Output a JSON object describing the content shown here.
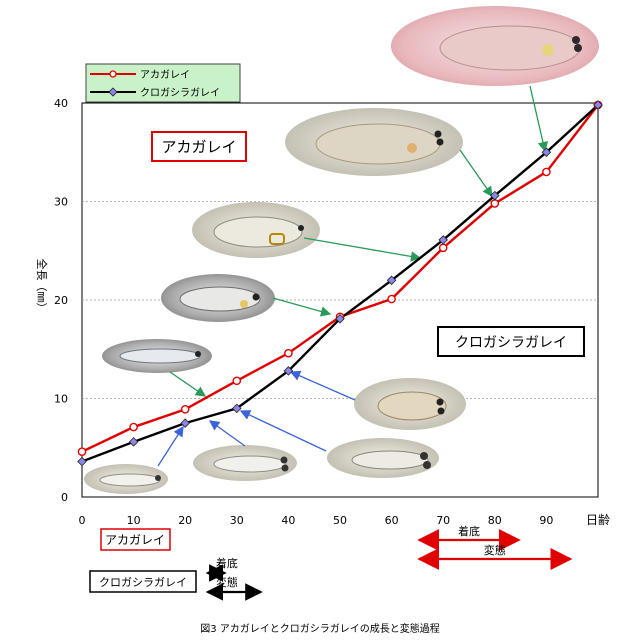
{
  "chart_data": {
    "type": "line",
    "title": "",
    "caption": "図3 アカガレイとクロガシラガレイの成長と変態過程",
    "xlabel": "日齢",
    "ylabel": "全長（㎜）",
    "xlim": [
      0,
      100
    ],
    "ylim": [
      0,
      40
    ],
    "xticks": [
      0,
      10,
      20,
      30,
      40,
      50,
      60,
      70,
      80,
      90
    ],
    "yticks": [
      0,
      10,
      20,
      30,
      40
    ],
    "grid": "horizontal dotted",
    "legend_position": "top-left",
    "series": [
      {
        "name": "アカガレイ",
        "color": "#e00000",
        "marker": "circle",
        "x": [
          0,
          10,
          20,
          30,
          40,
          50,
          60,
          70,
          80,
          90,
          100
        ],
        "y": [
          4.6,
          7.1,
          8.9,
          11.8,
          14.6,
          18.3,
          20.1,
          25.3,
          29.8,
          33.0,
          39.8
        ]
      },
      {
        "name": "クロガシラガレイ",
        "color": "#000000",
        "marker": "diamond",
        "x": [
          0,
          10,
          20,
          30,
          40,
          50,
          60,
          70,
          80,
          90,
          100
        ],
        "y": [
          3.6,
          5.6,
          7.5,
          9.0,
          12.8,
          18.1,
          22.0,
          26.1,
          30.6,
          35.0,
          39.8
        ]
      }
    ],
    "annotations": {
      "akagarei_label": "アカガレイ",
      "kurogashira_label": "クロガシラガレイ",
      "settle_label": "着底",
      "metamorphosis_label": "変態"
    },
    "stage_ranges": [
      {
        "species": "アカガレイ",
        "stage": "着底",
        "x": [
          65,
          85
        ]
      },
      {
        "species": "アカガレイ",
        "stage": "変態",
        "x": [
          65,
          95
        ]
      },
      {
        "species": "クロガシラガレイ",
        "stage": "着底",
        "x": [
          24,
          28
        ]
      },
      {
        "species": "クロガシラガレイ",
        "stage": "変態",
        "x": [
          24,
          35
        ]
      }
    ],
    "fish_images": [
      {
        "name": "fish-photo-kuro-larva-small",
        "points_to": [
          15,
          6.6
        ]
      },
      {
        "name": "fish-photo-kuro-larva-settle",
        "points_to": [
          25,
          8.3
        ]
      },
      {
        "name": "fish-photo-kuro-larva-mid",
        "points_to": [
          40,
          12.8
        ]
      },
      {
        "name": "fish-photo-kuro-juvenile",
        "points_to": [
          45,
          15.0
        ]
      },
      {
        "name": "fish-photo-aka-larva-small",
        "points_to": [
          24,
          10.2
        ]
      },
      {
        "name": "fish-photo-aka-larva-mid",
        "points_to": [
          48,
          17.9
        ]
      },
      {
        "name": "fish-photo-aka-larva-large",
        "points_to": [
          66,
          24.1
        ]
      },
      {
        "name": "fish-photo-aka-juvenile-pre",
        "points_to": [
          79,
          30.6
        ]
      },
      {
        "name": "fish-photo-aka-juvenile",
        "points_to": [
          90,
          35.0
        ]
      }
    ]
  }
}
